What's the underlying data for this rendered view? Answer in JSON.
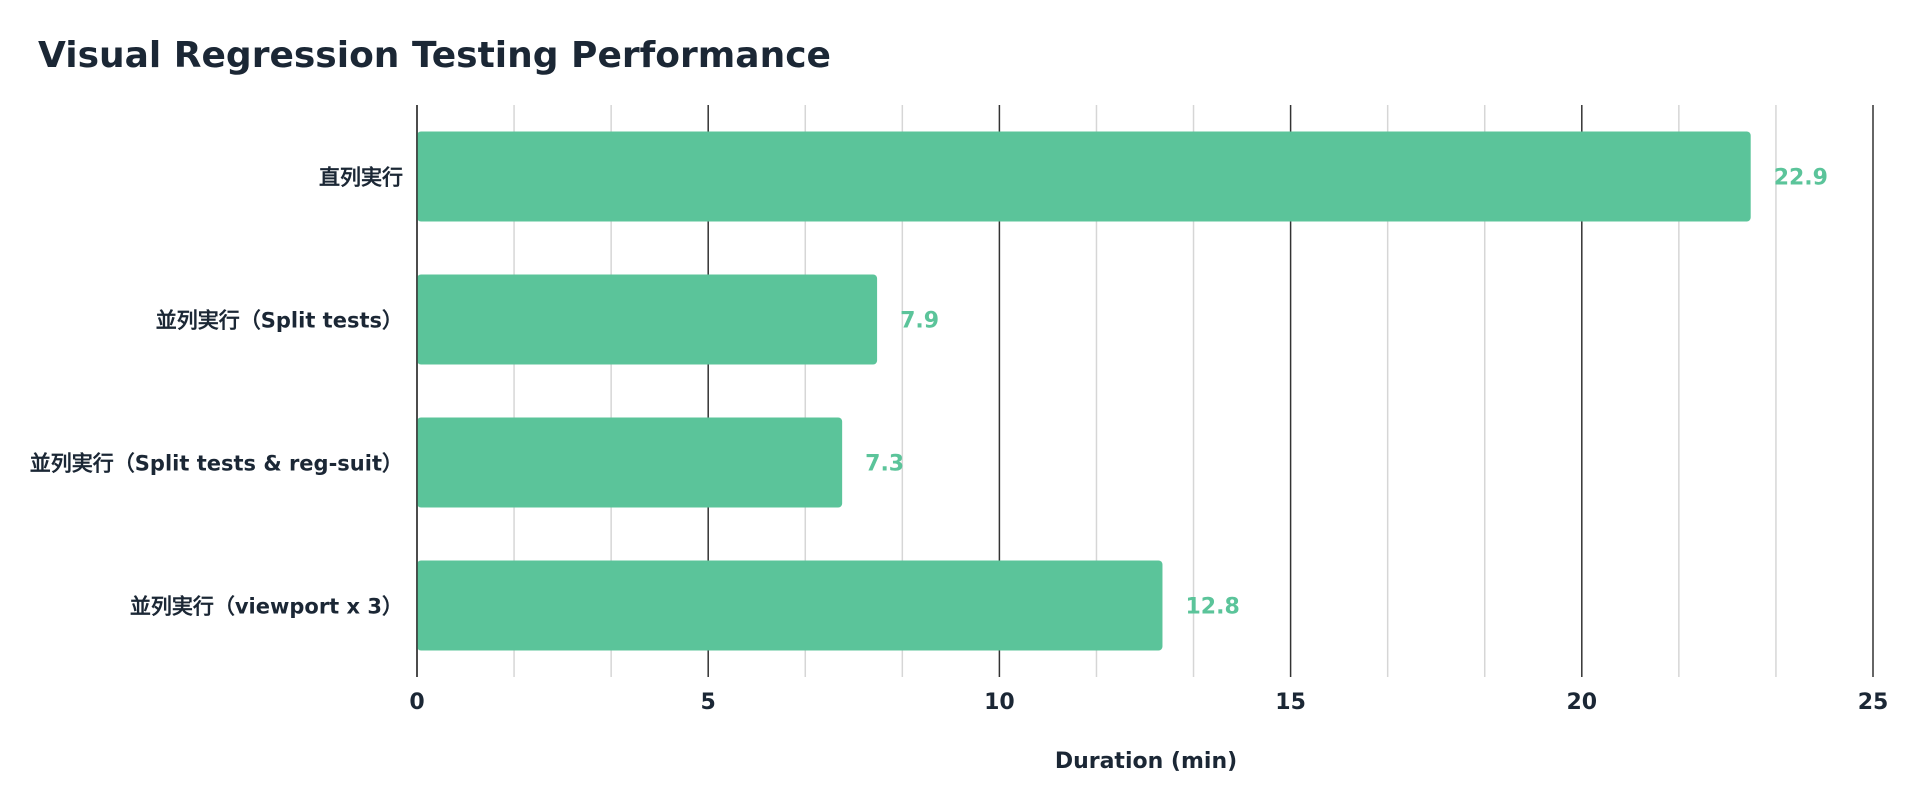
{
  "chart_data": {
    "type": "bar",
    "orientation": "horizontal",
    "title": "Visual Regression Testing Performance",
    "xlabel": "Duration (min)",
    "ylabel": "",
    "categories": [
      "直列実行",
      "並列実行（Split tests）",
      "並列実行（Split tests & reg-suit）",
      "並列実行（viewport x 3）"
    ],
    "values": [
      22.9,
      7.9,
      7.3,
      12.8
    ],
    "data_labels": [
      "22.9",
      "7.9",
      "7.3",
      "12.8"
    ],
    "xlim": [
      0,
      25
    ],
    "x_ticks": [
      0,
      5,
      10,
      15,
      20,
      25
    ],
    "x_tick_labels": [
      "0",
      "5",
      "10",
      "15",
      "20",
      "25"
    ],
    "minor_gridlines": true,
    "grid": "vertical",
    "legend": "none",
    "colors": {
      "bar": "#5bc49a",
      "data_label": "#5bc49a",
      "text": "#1b2735",
      "major_grid": "#333333",
      "minor_grid": "#d6d6d6"
    }
  }
}
